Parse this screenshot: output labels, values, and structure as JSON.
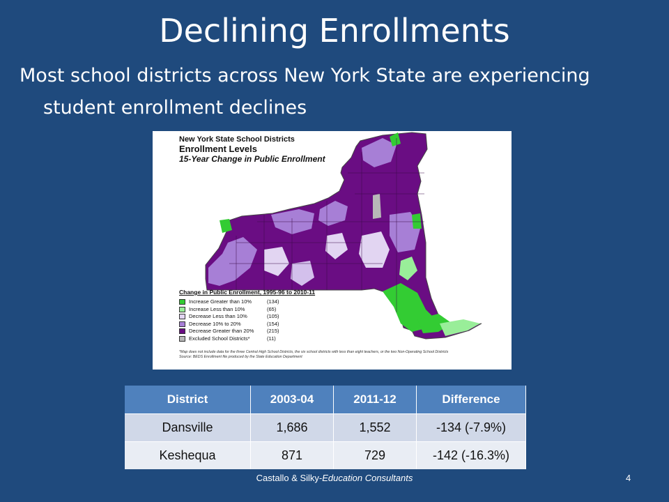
{
  "slide": {
    "title": "Declining Enrollments",
    "subtitle_line1": "Most school districts across New York State are experiencing",
    "subtitle_line2": "student enrollment declines"
  },
  "map": {
    "title_line1": "New York State School Districts",
    "title_line2": "Enrollment Levels",
    "title_line3": "15-Year Change in Public Enrollment",
    "legend_title": "Change in Public Enrollment, 1995-96 to 2010-11",
    "legend": [
      {
        "label": "Increase Greater than 10%",
        "count": "(134)",
        "color": "#33cc33"
      },
      {
        "label": "Increase Less than 10%",
        "count": "(65)",
        "color": "#99ee99"
      },
      {
        "label": "Decrease Less than 10%",
        "count": "(105)",
        "color": "#e2d5f2"
      },
      {
        "label": "Decrease 10% to 20%",
        "count": "(154)",
        "color": "#a77fd6"
      },
      {
        "label": "Decrease Greater than 20%",
        "count": "(215)",
        "color": "#6a0d83"
      },
      {
        "label": "Excluded School Districts*",
        "count": "(11)",
        "color": "#b8b8b8"
      }
    ],
    "note_line1": "*Map does not include data for the three Central High School Districts, the six school districts with less than eight teachers, or the two Non-Operating School Districts",
    "note_line2": "Source: BEDS Enrollment file produced by the State Education Department"
  },
  "table": {
    "headers": [
      "District",
      "2003-04",
      "2011-12",
      "Difference"
    ],
    "rows": [
      [
        "Dansville",
        "1,686",
        "1,552",
        "-134 (-7.9%)"
      ],
      [
        "Keshequa",
        "871",
        "729",
        "-142 (-16.3%)"
      ]
    ]
  },
  "footer": {
    "text_plain": "Castallo & Silky-",
    "text_italic": "Education Consultants",
    "page": "4"
  },
  "colors": {
    "background": "#1f4a7d",
    "table_header": "#4f81bd",
    "row_dark": "#d0d8e8",
    "row_light": "#e9edf4"
  }
}
